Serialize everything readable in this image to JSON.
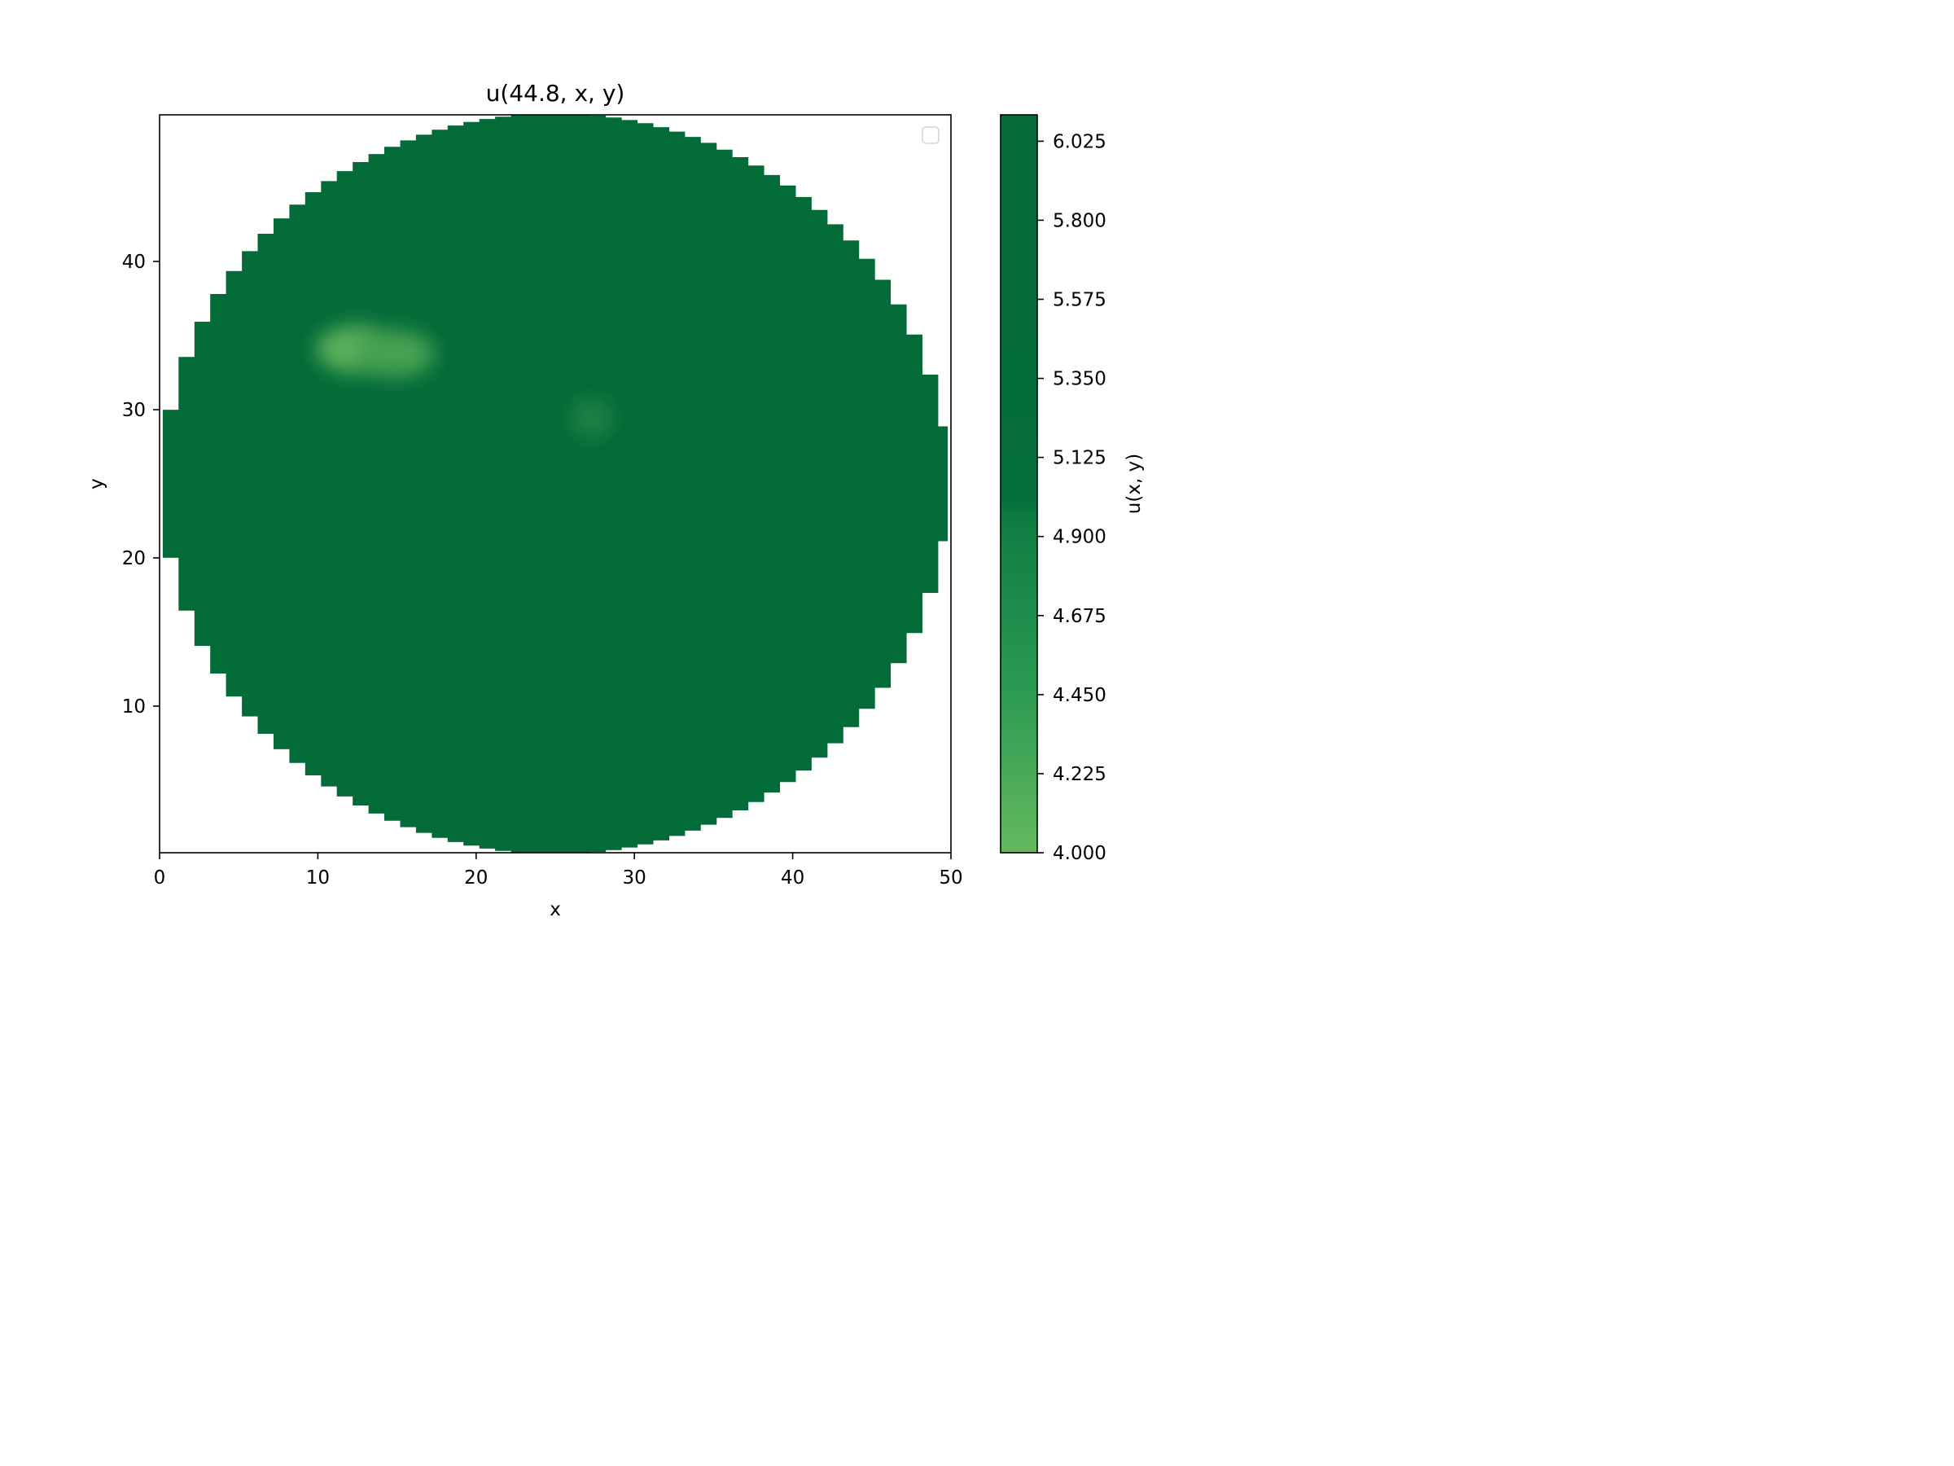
{
  "chart_data": {
    "type": "heatmap",
    "title": "u(44.8, x, y)",
    "xlabel": "x",
    "ylabel": "y",
    "xlim": [
      0,
      50
    ],
    "ylim": [
      0.3,
      49.7
    ],
    "x_ticks": [
      {
        "value": 0,
        "label": "0"
      },
      {
        "value": 10,
        "label": "10"
      },
      {
        "value": 20,
        "label": "20"
      },
      {
        "value": 30,
        "label": "30"
      },
      {
        "value": 40,
        "label": "40"
      },
      {
        "value": 50,
        "label": "50"
      }
    ],
    "y_ticks": [
      {
        "value": 10,
        "label": "10"
      },
      {
        "value": 20,
        "label": "20"
      },
      {
        "value": 30,
        "label": "30"
      },
      {
        "value": 40,
        "label": "40"
      }
    ],
    "domain": {
      "shape": "disk",
      "center": [
        25,
        25
      ],
      "radius": 24.8
    },
    "background_value": 5.0,
    "features": [
      {
        "x": 12.5,
        "y": 34.0,
        "value": 4.1
      },
      {
        "x": 14.8,
        "y": 33.7,
        "value": 4.3
      },
      {
        "x": 27.3,
        "y": 29.4,
        "value": 4.7
      }
    ],
    "colorbar": {
      "label": "u(x, y)",
      "range": [
        4.0,
        6.1
      ],
      "colormap": "Greens",
      "low_color": "#65b95f",
      "high_color": "#036b38",
      "ticks": [
        {
          "value": 4.0,
          "label": "4.000"
        },
        {
          "value": 4.225,
          "label": "4.225"
        },
        {
          "value": 4.45,
          "label": "4.450"
        },
        {
          "value": 4.675,
          "label": "4.675"
        },
        {
          "value": 4.9,
          "label": "4.900"
        },
        {
          "value": 5.125,
          "label": "5.125"
        },
        {
          "value": 5.35,
          "label": "5.350"
        },
        {
          "value": 5.575,
          "label": "5.575"
        },
        {
          "value": 5.8,
          "label": "5.800"
        },
        {
          "value": 6.025,
          "label": "6.025"
        }
      ]
    },
    "legend": {
      "position": "upper right",
      "entries": []
    }
  }
}
